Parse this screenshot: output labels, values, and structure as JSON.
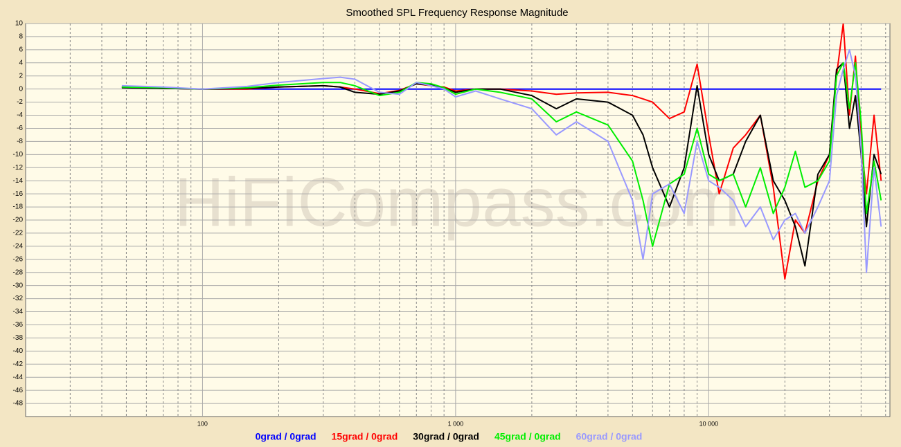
{
  "chart_data": {
    "type": "line",
    "title": "Smoothed SPL Frequency Response Magnitude",
    "watermark": "HiFiCompass.com",
    "log_x": true,
    "grid": true,
    "legend_position": "bottom",
    "xlim": [
      20,
      52000
    ],
    "ylim": [
      -50,
      10
    ],
    "xticks": [
      {
        "value": 100,
        "label": "100"
      },
      {
        "value": 1000,
        "label": "1 000"
      },
      {
        "value": 10000,
        "label": "10 000"
      }
    ],
    "xminorticks": [
      30,
      40,
      50,
      60,
      70,
      80,
      90,
      200,
      300,
      400,
      500,
      600,
      700,
      800,
      900,
      2000,
      3000,
      4000,
      5000,
      6000,
      7000,
      8000,
      9000,
      20000,
      30000,
      40000,
      50000
    ],
    "yticks": [
      10,
      8,
      6,
      4,
      2,
      0,
      -2,
      -4,
      -6,
      -8,
      -10,
      -12,
      -14,
      -16,
      -18,
      -20,
      -22,
      -24,
      -26,
      -28,
      -30,
      -32,
      -34,
      -36,
      -38,
      -40,
      -42,
      -44,
      -46,
      -48
    ],
    "x": [
      48,
      70,
      100,
      150,
      200,
      300,
      350,
      400,
      500,
      600,
      700,
      800,
      900,
      1000,
      1200,
      1500,
      2000,
      2500,
      3000,
      4000,
      5000,
      5500,
      6000,
      7000,
      8000,
      9000,
      10000,
      11000,
      12500,
      14000,
      16000,
      18000,
      20000,
      22000,
      24000,
      27000,
      30000,
      32000,
      34000,
      36000,
      38000,
      40000,
      42000,
      45000,
      48000
    ],
    "series": [
      {
        "name": "0grad / 0grad",
        "color": "#0000ff",
        "values": [
          0.3,
          0.1,
          0,
          0,
          0,
          0,
          0,
          0,
          0,
          0,
          0,
          0,
          0,
          0,
          0,
          0,
          0,
          0,
          0,
          0,
          0,
          0,
          0,
          0,
          0,
          0,
          0,
          0,
          0,
          0,
          0,
          0,
          0,
          0,
          0,
          0,
          0,
          0,
          0,
          0,
          0,
          0,
          0,
          0,
          0
        ]
      },
      {
        "name": "15grad / 0grad",
        "color": "#ff0000",
        "values": [
          0.3,
          0.1,
          0,
          0,
          0.3,
          0.5,
          0.3,
          0,
          -0.7,
          -0.2,
          0.8,
          0.5,
          0.3,
          -0.3,
          0,
          0,
          -0.3,
          -0.8,
          -0.6,
          -0.5,
          -1,
          -1.5,
          -2,
          -4.5,
          -3.5,
          3.8,
          -7,
          -16,
          -9,
          -7,
          -4,
          -15,
          -29,
          -20,
          -22,
          -14,
          -10,
          2,
          10,
          -4,
          5,
          -8,
          -16,
          -4,
          -14
        ]
      },
      {
        "name": "30grad / 0grad",
        "color": "#000000",
        "values": [
          0.2,
          0.1,
          0,
          0.1,
          0.3,
          0.5,
          0.3,
          -0.5,
          -0.8,
          -0.3,
          0.8,
          0.6,
          0.2,
          -0.5,
          0,
          0,
          -1,
          -3,
          -1.5,
          -2,
          -4,
          -7,
          -12,
          -18,
          -12,
          0.5,
          -10,
          -14,
          -13,
          -8,
          -4,
          -14,
          -17,
          -21,
          -27,
          -13,
          -10,
          3,
          4,
          -6,
          -1,
          -10,
          -21,
          -10,
          -13
        ]
      },
      {
        "name": "45grad / 0grad",
        "color": "#00ee00",
        "values": [
          0.3,
          0.2,
          0,
          0.2,
          0.6,
          1,
          1,
          0.5,
          -1,
          -0.5,
          1,
          0.8,
          0.2,
          -0.8,
          0,
          -0.5,
          -1.5,
          -5,
          -3.5,
          -5.5,
          -11,
          -17,
          -24,
          -14.5,
          -13,
          -6,
          -13,
          -14,
          -13,
          -18,
          -12,
          -19,
          -15,
          -9.5,
          -15,
          -14,
          -11,
          2,
          4,
          -3,
          4,
          -5,
          -19,
          -11,
          -17
        ]
      },
      {
        "name": "60grad / 0grad",
        "color": "#9999ff",
        "values": [
          0.5,
          0.3,
          0,
          0.4,
          1,
          1.6,
          1.8,
          1.5,
          -0.5,
          -0.8,
          1,
          0.5,
          0,
          -1.2,
          -0.3,
          -1.5,
          -3,
          -7,
          -5,
          -8,
          -17,
          -26,
          -16,
          -14.5,
          -19,
          -8,
          -14,
          -15,
          -17,
          -21,
          -18,
          -23,
          -20,
          -19,
          -22,
          -18,
          -14,
          -1,
          3,
          6,
          2,
          -9,
          -28,
          -12,
          -21
        ]
      }
    ]
  }
}
